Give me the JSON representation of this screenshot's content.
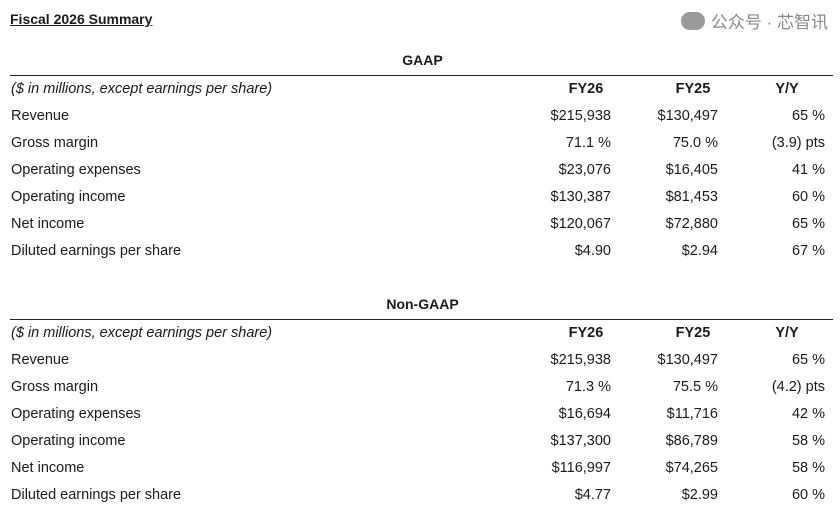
{
  "title": "Fiscal 2026 Summary",
  "columns": {
    "note": "($ in millions, except earnings per share)",
    "fy26": "FY26",
    "fy25": "FY25",
    "yy": "Y/Y"
  },
  "sections": [
    {
      "title": "GAAP",
      "rows": [
        [
          "Revenue",
          "$215,938",
          "$130,497",
          "65 %"
        ],
        [
          "Gross margin",
          "71.1 %",
          "75.0 %",
          "(3.9) pts"
        ],
        [
          "Operating expenses",
          "$23,076",
          "$16,405",
          "41 %"
        ],
        [
          "Operating income",
          "$130,387",
          "$81,453",
          "60 %"
        ],
        [
          "Net income",
          "$120,067",
          "$72,880",
          "65 %"
        ],
        [
          "Diluted earnings per share",
          "$4.90",
          "$2.94",
          "67 %"
        ]
      ]
    },
    {
      "title": "Non-GAAP",
      "rows": [
        [
          "Revenue",
          "$215,938",
          "$130,497",
          "65 %"
        ],
        [
          "Gross margin",
          "71.3 %",
          "75.5 %",
          "(4.2) pts"
        ],
        [
          "Operating expenses",
          "$16,694",
          "$11,716",
          "42 %"
        ],
        [
          "Operating income",
          "$137,300",
          "$86,789",
          "58  %"
        ],
        [
          "Net income",
          "$116,997",
          "$74,265",
          "58 %"
        ],
        [
          "Diluted earnings per share",
          "$4.77",
          "$2.99",
          "60 %"
        ]
      ]
    }
  ],
  "watermark": {
    "icon": "wechat-icon",
    "text": "公众号 · 芯智讯"
  }
}
